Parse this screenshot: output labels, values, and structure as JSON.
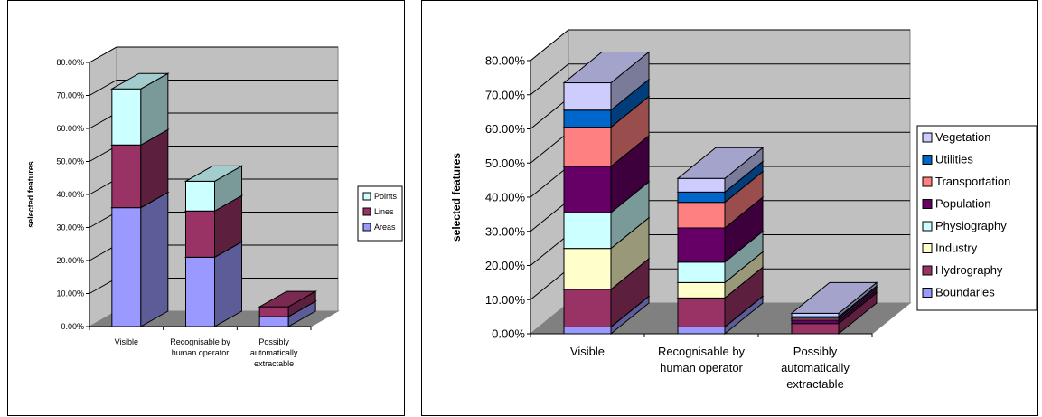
{
  "chart_data": [
    {
      "type": "bar",
      "stacked": true,
      "three_d": true,
      "title": "",
      "xlabel": "",
      "ylabel": "selected features",
      "ylim": [
        0,
        0.8
      ],
      "y_ticks": [
        "0.00%",
        "10.00%",
        "20.00%",
        "30.00%",
        "40.00%",
        "50.00%",
        "60.00%",
        "70.00%",
        "80.00%"
      ],
      "categories": [
        [
          "Visible"
        ],
        [
          "Recognisable by",
          "human operator"
        ],
        [
          "Possibly",
          "automatically",
          "extractable"
        ]
      ],
      "grid": true,
      "legend_position": "right",
      "legend_order": [
        "Points",
        "Lines",
        "Areas"
      ],
      "series": [
        {
          "name": "Areas",
          "color": "#9999ff",
          "values": [
            0.36,
            0.21,
            0.03
          ]
        },
        {
          "name": "Lines",
          "color": "#993366",
          "values": [
            0.19,
            0.14,
            0.03
          ]
        },
        {
          "name": "Points",
          "color": "#ccffff",
          "values": [
            0.17,
            0.09,
            0.0
          ]
        }
      ]
    },
    {
      "type": "bar",
      "stacked": true,
      "three_d": true,
      "title": "",
      "xlabel": "",
      "ylabel": "selected features",
      "ylim": [
        0,
        0.8
      ],
      "y_ticks": [
        "0.00%",
        "10.00%",
        "20.00%",
        "30.00%",
        "40.00%",
        "50.00%",
        "60.00%",
        "70.00%",
        "80.00%"
      ],
      "categories": [
        [
          "Visible"
        ],
        [
          "Recognisable by",
          "human operator"
        ],
        [
          "Possibly",
          "automatically",
          "extractable"
        ]
      ],
      "grid": true,
      "legend_position": "right",
      "legend_order": [
        "Vegetation",
        "Utilities",
        "Transportation",
        "Population",
        "Physiography",
        "Industry",
        "Hydrography",
        "Boundaries"
      ],
      "series": [
        {
          "name": "Boundaries",
          "color": "#9999ff",
          "values": [
            0.02,
            0.02,
            0.0
          ]
        },
        {
          "name": "Hydrography",
          "color": "#993366",
          "values": [
            0.11,
            0.085,
            0.03
          ]
        },
        {
          "name": "Industry",
          "color": "#ffffcc",
          "values": [
            0.12,
            0.045,
            0.0
          ]
        },
        {
          "name": "Physiography",
          "color": "#ccffff",
          "values": [
            0.105,
            0.06,
            0.0
          ]
        },
        {
          "name": "Population",
          "color": "#660066",
          "values": [
            0.135,
            0.1,
            0.01
          ]
        },
        {
          "name": "Transportation",
          "color": "#ff8080",
          "values": [
            0.115,
            0.075,
            0.005
          ]
        },
        {
          "name": "Utilities",
          "color": "#0066cc",
          "values": [
            0.05,
            0.03,
            0.005
          ]
        },
        {
          "name": "Vegetation",
          "color": "#ccccff",
          "values": [
            0.08,
            0.04,
            0.01
          ]
        }
      ]
    }
  ]
}
